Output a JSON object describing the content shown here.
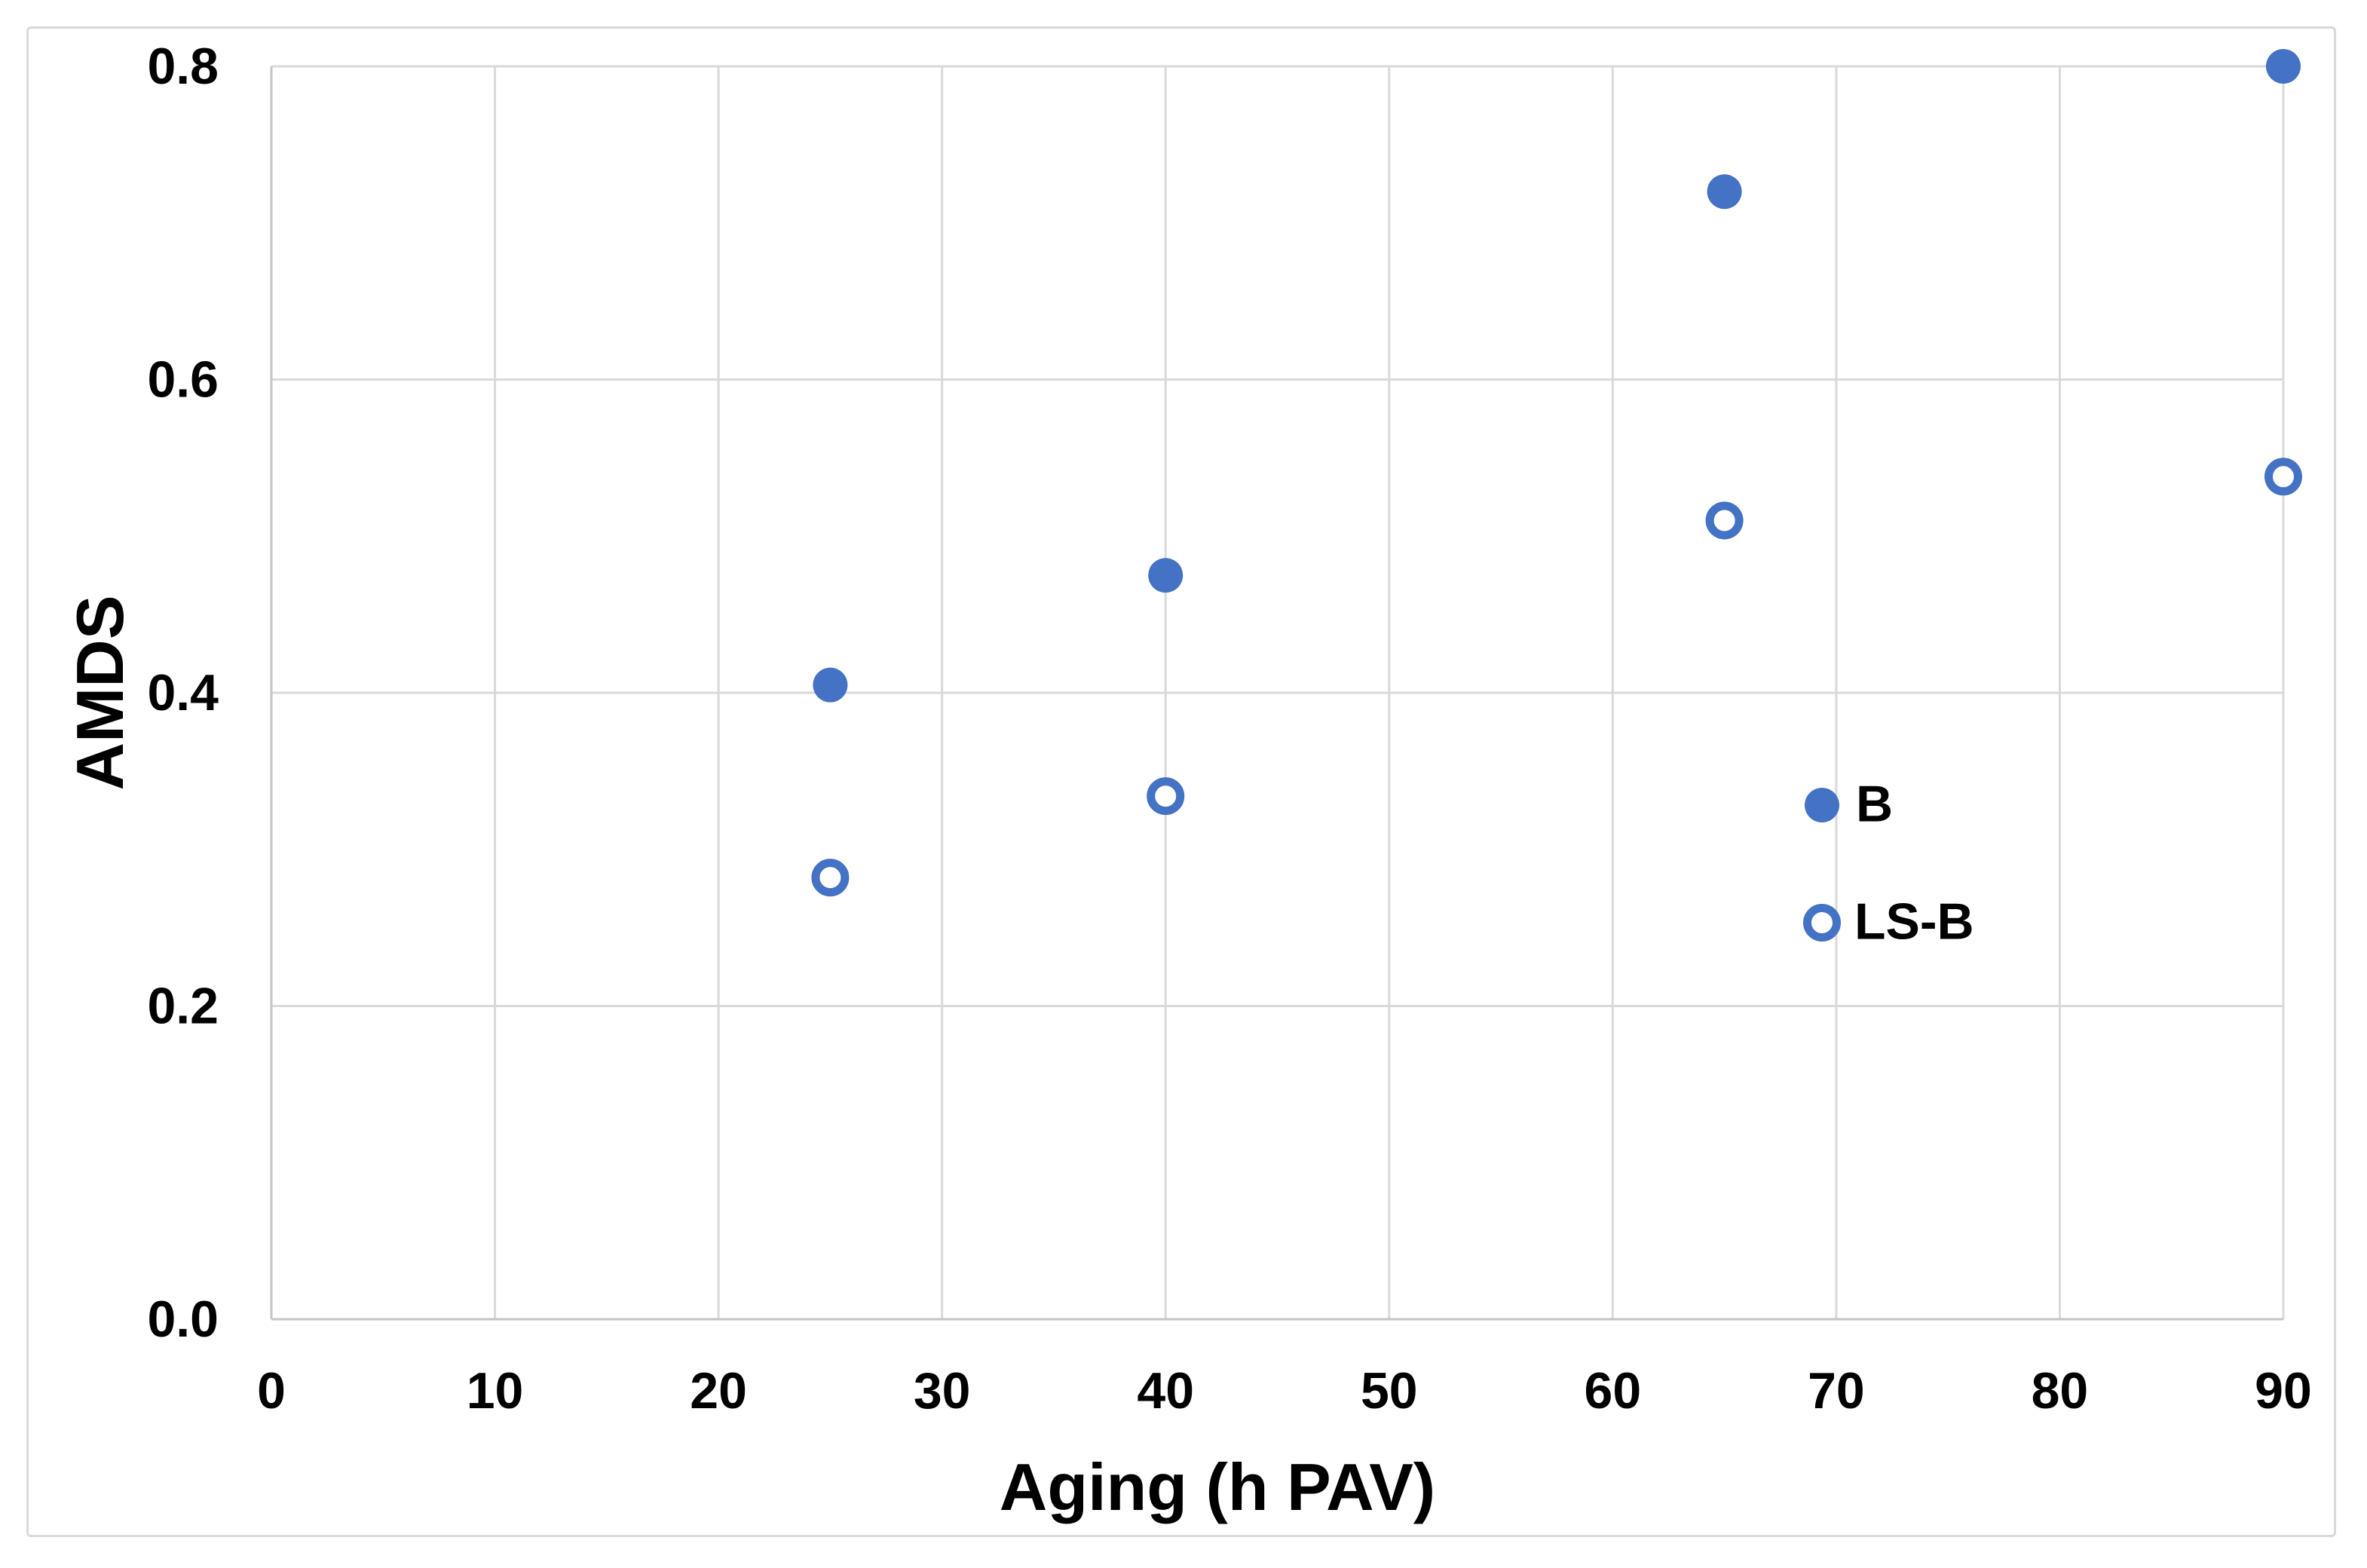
{
  "figure": {
    "background_color": "#FFFFFF",
    "border_color": "#D9D9D9",
    "gridline_color": "#D9D9D9",
    "axis_line_color": "#C4C4C4",
    "accent_color": "#4472C4",
    "text_color": "#000000"
  },
  "chart_data": {
    "type": "scatter",
    "title": "",
    "xlabel": "Aging (h PAV)",
    "ylabel": "AMDS",
    "xlim": [
      0,
      90
    ],
    "ylim": [
      0.0,
      0.8
    ],
    "grid": true,
    "xticks": [
      "0",
      "10",
      "20",
      "30",
      "40",
      "50",
      "60",
      "70",
      "80",
      "90"
    ],
    "yticks": [
      "0.0",
      "0.2",
      "0.4",
      "0.6",
      "0.8"
    ],
    "series": [
      {
        "name": "B",
        "marker": "filled-circle",
        "color": "#4472C4",
        "points": [
          {
            "x": 25,
            "y": 0.405
          },
          {
            "x": 40,
            "y": 0.475
          },
          {
            "x": 65,
            "y": 0.72
          },
          {
            "x": 90,
            "y": 0.8
          }
        ]
      },
      {
        "name": "LS-B",
        "marker": "open-circle",
        "color": "#4472C4",
        "points": [
          {
            "x": 25,
            "y": 0.282
          },
          {
            "x": 40,
            "y": 0.334
          },
          {
            "x": 65,
            "y": 0.51
          },
          {
            "x": 90,
            "y": 0.538
          }
        ]
      }
    ],
    "legend": {
      "position": "inside-right",
      "entries": [
        "B",
        "LS-B"
      ]
    }
  }
}
